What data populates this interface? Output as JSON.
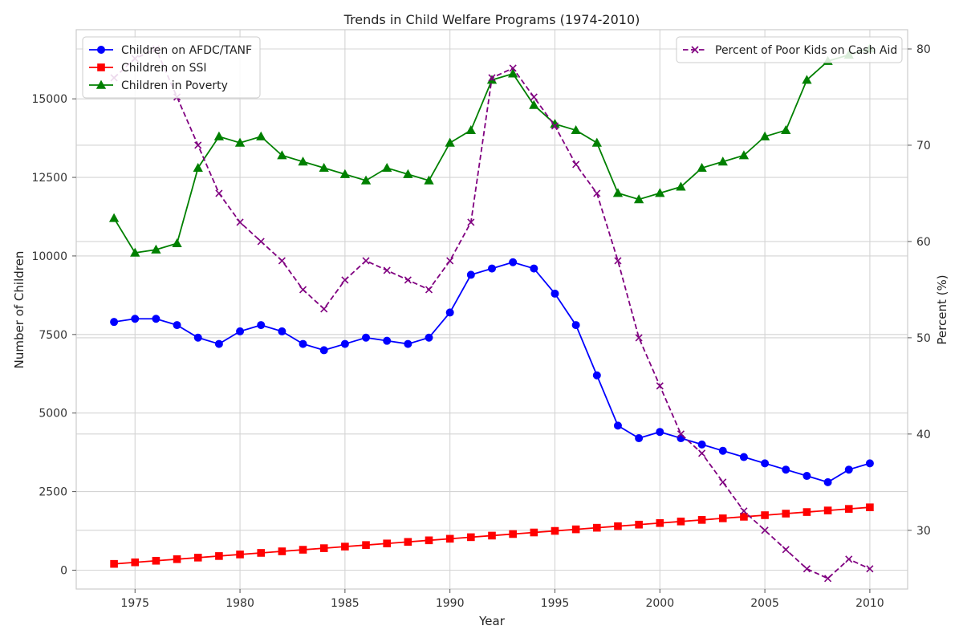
{
  "chart_data": {
    "type": "line",
    "title": "Trends in Child Welfare Programs (1974-2010)",
    "xlabel": "Year",
    "ylabel": "Number of Children",
    "y2label": "Percent (%)",
    "x": [
      1974,
      1975,
      1976,
      1977,
      1978,
      1979,
      1980,
      1981,
      1982,
      1983,
      1984,
      1985,
      1986,
      1987,
      1988,
      1989,
      1990,
      1991,
      1992,
      1993,
      1994,
      1995,
      1996,
      1997,
      1998,
      1999,
      2000,
      2001,
      2002,
      2003,
      2004,
      2005,
      2006,
      2007,
      2008,
      2009,
      2010
    ],
    "xlim": [
      1972.2,
      2011.8
    ],
    "ylim": [
      -600,
      17200
    ],
    "y2lim": [
      23.9,
      82.0
    ],
    "xticks": [
      1975,
      1980,
      1985,
      1990,
      1995,
      2000,
      2005,
      2010
    ],
    "yticks": [
      0,
      2500,
      5000,
      7500,
      10000,
      12500,
      15000
    ],
    "y2ticks": [
      30,
      40,
      50,
      60,
      70,
      80
    ],
    "grid": true,
    "series": [
      {
        "name": "Children on AFDC/TANF",
        "axis": "left",
        "color": "#0000ff",
        "marker": "circle",
        "linestyle": "solid",
        "values": [
          7900,
          8000,
          8000,
          7800,
          7400,
          7200,
          7600,
          7800,
          7600,
          7200,
          7000,
          7200,
          7400,
          7300,
          7200,
          7400,
          8200,
          9400,
          9600,
          9800,
          9600,
          8800,
          7800,
          6200,
          4600,
          4200,
          4400,
          4200,
          4000,
          3800,
          3600,
          3400,
          3200,
          3000,
          2800,
          3200,
          3400
        ]
      },
      {
        "name": "Children on SSI",
        "axis": "left",
        "color": "#ff0000",
        "marker": "square",
        "linestyle": "solid",
        "values": [
          200,
          250,
          300,
          350,
          400,
          450,
          500,
          550,
          600,
          650,
          700,
          750,
          800,
          850,
          900,
          950,
          1000,
          1050,
          1100,
          1150,
          1200,
          1250,
          1300,
          1350,
          1400,
          1450,
          1500,
          1550,
          1600,
          1650,
          1700,
          1750,
          1800,
          1850,
          1900,
          1950,
          2000
        ]
      },
      {
        "name": "Children in Poverty",
        "axis": "left",
        "color": "#008000",
        "marker": "triangle",
        "linestyle": "solid",
        "values": [
          11200,
          10100,
          10200,
          10400,
          12800,
          13800,
          13600,
          13800,
          13200,
          13000,
          12800,
          12600,
          12400,
          12800,
          12600,
          12400,
          13600,
          14000,
          15600,
          15800,
          14800,
          14200,
          14000,
          13600,
          12000,
          11800,
          12000,
          12200,
          12800,
          13000,
          13200,
          13800,
          14000,
          15600,
          16200,
          16400,
          16600
        ]
      },
      {
        "name": "Percent of Poor Kids on Cash Aid",
        "axis": "right",
        "color": "#800080",
        "marker": "x",
        "linestyle": "dashed",
        "values": [
          77,
          79,
          80,
          75,
          70,
          65,
          62,
          60,
          58,
          55,
          53,
          56,
          58,
          57,
          56,
          55,
          58,
          62,
          77,
          78,
          75,
          72,
          68,
          65,
          58,
          50,
          45,
          40,
          38,
          35,
          32,
          30,
          28,
          26,
          25,
          27,
          26
        ]
      }
    ],
    "legend_left_placement": "upper-left",
    "legend_right_placement": "upper-right"
  }
}
